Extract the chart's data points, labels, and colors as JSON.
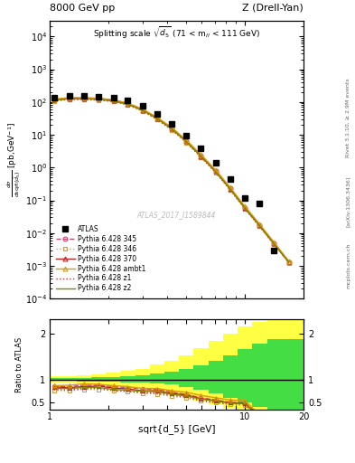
{
  "title_left": "8000 GeV pp",
  "title_right": "Z (Drell-Yan)",
  "watermark": "ATLAS_2017_I1589844",
  "right_label": "Rivet 3.1.10, ≥ 2.9M events",
  "arxiv_label": "[arXiv:1306.3436]",
  "mcplots_label": "mcplots.cern.ch",
  "x_data": [
    1.05,
    1.26,
    1.5,
    1.78,
    2.12,
    2.51,
    2.99,
    3.55,
    4.22,
    5.01,
    5.96,
    7.08,
    8.41,
    10.0,
    11.9,
    14.1,
    16.8
  ],
  "atlas_y": [
    140,
    155,
    150,
    145,
    135,
    110,
    75,
    42,
    22,
    9.5,
    3.8,
    1.4,
    0.45,
    0.12,
    0.08,
    0.003,
    null
  ],
  "pythia_345_y": [
    120,
    132,
    132,
    128,
    114,
    91,
    60,
    33,
    16,
    6.5,
    2.3,
    0.78,
    0.23,
    0.06,
    0.017,
    0.0048,
    0.0013
  ],
  "pythia_346_y": [
    108,
    118,
    118,
    114,
    102,
    81,
    53,
    29,
    14,
    5.8,
    2.05,
    0.7,
    0.205,
    0.054,
    0.016,
    0.0046,
    0.0013
  ],
  "pythia_370_y": [
    117,
    129,
    128,
    124,
    111,
    88,
    57,
    32,
    15.5,
    6.4,
    2.25,
    0.77,
    0.225,
    0.059,
    0.017,
    0.0048,
    0.0013
  ],
  "pythia_ambt1_y": [
    122,
    136,
    136,
    131,
    117,
    93,
    61,
    34,
    16.8,
    6.9,
    2.5,
    0.85,
    0.25,
    0.066,
    0.019,
    0.0053,
    0.0014
  ],
  "pythia_z1_y": [
    110,
    121,
    121,
    117,
    104,
    83,
    54,
    30,
    14.5,
    6.0,
    2.1,
    0.72,
    0.215,
    0.057,
    0.016,
    0.0046,
    0.0013
  ],
  "pythia_z2_y": [
    113,
    125,
    125,
    120,
    107,
    85,
    56,
    31,
    15,
    6.2,
    2.2,
    0.75,
    0.22,
    0.058,
    0.017,
    0.0047,
    0.0013
  ],
  "ratio_345": [
    0.86,
    0.85,
    0.88,
    0.88,
    0.85,
    0.83,
    0.8,
    0.79,
    0.73,
    0.68,
    0.61,
    0.56,
    0.51,
    0.5,
    0.21,
    null,
    null
  ],
  "ratio_346": [
    0.77,
    0.76,
    0.79,
    0.79,
    0.76,
    0.74,
    0.71,
    0.69,
    0.64,
    0.61,
    0.54,
    0.5,
    0.46,
    0.45,
    0.2,
    null,
    null
  ],
  "ratio_370": [
    0.84,
    0.83,
    0.85,
    0.86,
    0.82,
    0.8,
    0.76,
    0.76,
    0.7,
    0.67,
    0.59,
    0.55,
    0.5,
    0.49,
    0.21,
    null,
    null
  ],
  "ratio_ambt1": [
    0.87,
    0.88,
    0.91,
    0.9,
    0.87,
    0.85,
    0.81,
    0.81,
    0.76,
    0.73,
    0.66,
    0.61,
    0.56,
    0.55,
    0.24,
    null,
    null
  ],
  "ratio_z1": [
    0.79,
    0.78,
    0.81,
    0.81,
    0.77,
    0.75,
    0.72,
    0.71,
    0.66,
    0.63,
    0.55,
    0.51,
    0.48,
    0.47,
    0.2,
    null,
    null
  ],
  "ratio_z2": [
    0.81,
    0.81,
    0.83,
    0.83,
    0.79,
    0.77,
    0.75,
    0.74,
    0.68,
    0.65,
    0.58,
    0.54,
    0.49,
    0.48,
    0.21,
    null,
    null
  ],
  "ratio_band_x_edges": [
    1.0,
    1.15,
    1.37,
    1.63,
    1.93,
    2.3,
    2.74,
    3.25,
    3.87,
    4.6,
    5.47,
    6.5,
    7.73,
    9.19,
    10.93,
    12.99,
    20.0
  ],
  "ratio_green_lo": [
    0.97,
    0.97,
    0.96,
    0.96,
    0.95,
    0.94,
    0.93,
    0.91,
    0.89,
    0.85,
    0.79,
    0.71,
    0.61,
    0.5,
    0.42,
    0.36
  ],
  "ratio_green_hi": [
    1.03,
    1.03,
    1.04,
    1.05,
    1.06,
    1.08,
    1.1,
    1.13,
    1.17,
    1.23,
    1.31,
    1.41,
    1.53,
    1.66,
    1.78,
    1.88
  ],
  "ratio_yellow_lo": [
    0.93,
    0.93,
    0.91,
    0.9,
    0.88,
    0.85,
    0.82,
    0.77,
    0.71,
    0.64,
    0.55,
    0.46,
    0.37,
    0.3,
    0.24,
    0.2
  ],
  "ratio_yellow_hi": [
    1.07,
    1.08,
    1.1,
    1.12,
    1.15,
    1.19,
    1.24,
    1.32,
    1.41,
    1.53,
    1.68,
    1.84,
    2.0,
    2.14,
    2.25,
    2.35
  ],
  "color_345": "#cc4477",
  "color_346": "#cc9944",
  "color_370": "#bb2222",
  "color_ambt1": "#dd9900",
  "color_z1": "#bb3333",
  "color_z2": "#888800",
  "xlim": [
    1.0,
    20.0
  ],
  "ylim_main": [
    0.0001,
    30000.0
  ],
  "ylim_ratio": [
    0.35,
    2.3
  ]
}
